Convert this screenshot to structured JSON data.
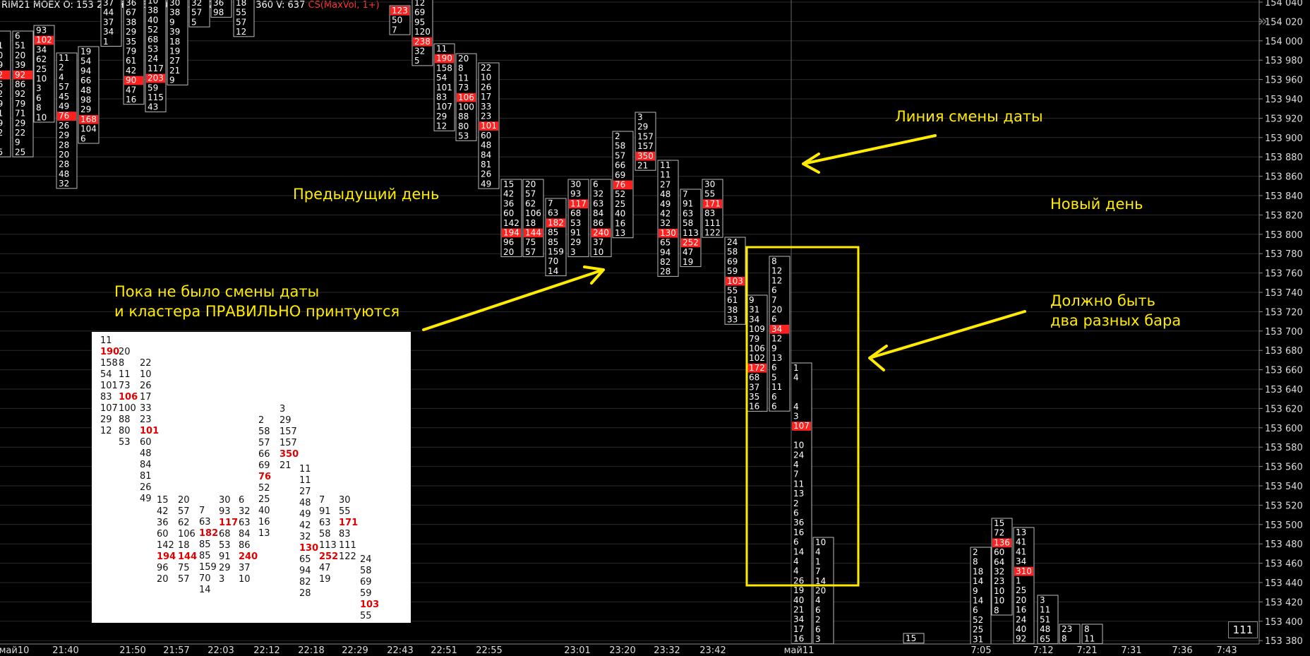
{
  "header": {
    "symbol": "RIM21",
    "exchange": "MOEX",
    "ohlcv": "O: 153 260  H: 153 360  L: 153 220  C: 153 360  V: 637",
    "indicator": "CS(MaxVol, 1+)"
  },
  "price_axis": [
    "154 040",
    "154 020",
    "154 000",
    "153 980",
    "153 960",
    "153 940",
    "153 920",
    "153 900",
    "153 880",
    "153 860",
    "153 840",
    "153 820",
    "153 800",
    "153 780",
    "153 760",
    "153 740",
    "153 720",
    "153 700",
    "153 680",
    "153 660",
    "153 640",
    "153 620",
    "153 600",
    "153 580",
    "153 560",
    "153 540",
    "153 520",
    "153 500",
    "153 480",
    "153 460",
    "153 440",
    "153 420",
    "153 400",
    "153 380"
  ],
  "time_axis": [
    "май10",
    "21:40",
    "21:50",
    "21:57",
    "22:03",
    "22:12",
    "22:18",
    "22:29",
    "22:43",
    "22:51",
    "22:55",
    "23:01",
    "23:20",
    "23:32",
    "23:42",
    "май11",
    "7:05",
    "7:12",
    "7:21",
    "7:31",
    "7:36",
    "7:43"
  ],
  "counter": "111",
  "notes": {
    "date_line": "Линия смены даты",
    "prev_day": "Предыдущий день",
    "new_day": "Новый день",
    "correct": "Пока не было смены даты\nи кластера ПРАВИЛЬНО принтуются",
    "two_bars": "Должно быть\nдва разных бара"
  },
  "colors": {
    "max_volume": "#ff2020",
    "note": "#ffeb00",
    "frame": "#ffeb00",
    "grid": "#2a2a2a"
  },
  "bars": [
    {
      "vals": [
        "5",
        "51",
        "20",
        "39",
        "92",
        "86",
        "92",
        "79",
        "71",
        "29",
        "22",
        "9",
        "25"
      ],
      "max": 4
    },
    {
      "vals": [
        "6",
        "51",
        "20",
        "39",
        "92",
        "86",
        "92",
        "79",
        "71",
        "29",
        "22",
        "9",
        "25"
      ],
      "max": 4
    },
    {
      "vals": [
        "93",
        "102",
        "34",
        "62",
        "25",
        "10",
        "3",
        "6",
        "8",
        "10"
      ],
      "max": 1
    },
    {
      "vals": [
        "11",
        "2",
        "4",
        "57",
        "45",
        "49",
        "76",
        "26",
        "29",
        "28",
        "20",
        "28",
        "48",
        "32"
      ],
      "max": 6
    },
    {
      "vals": [
        "19",
        "54",
        "94",
        "66",
        "48",
        "98",
        "29",
        "168",
        "104",
        "6"
      ],
      "max": 7
    },
    {
      "vals": [
        "37",
        "44",
        "37",
        "34",
        "1"
      ],
      "max": -1
    },
    {
      "vals": [
        "36",
        "67",
        "38",
        "29",
        "35",
        "79",
        "61",
        "42",
        "90",
        "47",
        "16"
      ],
      "max": 8
    },
    {
      "vals": [
        "10",
        "38",
        "40",
        "52",
        "68",
        "53",
        "24",
        "117",
        "203",
        "59",
        "115",
        "43"
      ],
      "max": 8
    },
    {
      "vals": [
        "30",
        "38",
        "9",
        "39",
        "18",
        "19",
        "27",
        "21",
        "9"
      ],
      "max": -1
    },
    {
      "vals": [
        "32",
        "57",
        "5"
      ],
      "max": -1
    },
    {
      "vals": [
        "36",
        "98"
      ],
      "max": -1
    },
    {
      "vals": [
        "18",
        "55",
        "57",
        "12"
      ],
      "max": -1
    },
    {
      "vals": [
        "123",
        "50",
        "7"
      ],
      "max": 0
    },
    {
      "vals": [
        "12",
        "69",
        "95",
        "120",
        "238",
        "32",
        "5"
      ],
      "max": 4
    },
    {
      "vals": [
        "11",
        "190",
        "158",
        "54",
        "101",
        "83",
        "107",
        "29",
        "12"
      ],
      "max": 1
    },
    {
      "vals": [
        "20",
        "8",
        "11",
        "73",
        "106",
        "100",
        "88",
        "80",
        "53"
      ],
      "max": 4
    },
    {
      "vals": [
        "22",
        "10",
        "26",
        "17",
        "33",
        "23",
        "101",
        "60",
        "48",
        "84",
        "81",
        "26",
        "49"
      ],
      "max": 6
    },
    {
      "vals": [
        "15",
        "42",
        "36",
        "60",
        "142",
        "194",
        "96",
        "20"
      ],
      "max": 5
    },
    {
      "vals": [
        "20",
        "57",
        "62",
        "106",
        "18",
        "144",
        "75",
        "57"
      ],
      "max": 5
    },
    {
      "vals": [
        "7",
        "63",
        "182",
        "85",
        "85",
        "159",
        "70",
        "14"
      ],
      "max": 2
    },
    {
      "vals": [
        "30",
        "93",
        "117",
        "68",
        "53",
        "91",
        "29",
        "3"
      ],
      "max": 2
    },
    {
      "vals": [
        "6",
        "32",
        "63",
        "84",
        "86",
        "240",
        "37",
        "10"
      ],
      "max": 5
    },
    {
      "vals": [
        "2",
        "58",
        "57",
        "66",
        "69",
        "76",
        "52",
        "25",
        "40",
        "16",
        "13"
      ],
      "max": 5
    },
    {
      "vals": [
        "3",
        "29",
        "157",
        "157",
        "350",
        "21"
      ],
      "max": 4
    },
    {
      "vals": [
        "11",
        "11",
        "27",
        "48",
        "49",
        "42",
        "32",
        "130",
        "65",
        "94",
        "82",
        "28"
      ],
      "max": 7
    },
    {
      "vals": [
        "7",
        "91",
        "63",
        "58",
        "113",
        "252",
        "47",
        "19"
      ],
      "max": 5
    },
    {
      "vals": [
        "30",
        "55",
        "171",
        "83",
        "111",
        "122"
      ],
      "max": 2
    },
    {
      "vals": [
        "24",
        "58",
        "69",
        "59",
        "103",
        "55",
        "61",
        "38",
        "33"
      ],
      "max": 4
    },
    {
      "vals": [
        "9",
        "31",
        "34",
        "109",
        "79",
        "106",
        "102",
        "172",
        "68",
        "37",
        "35",
        "16"
      ],
      "max": 7
    },
    {
      "vals": [
        "8",
        "12",
        "12",
        "6",
        "7",
        "20",
        "6",
        "34",
        "12",
        "9",
        "13",
        "6",
        "5",
        "11",
        "6",
        "6"
      ],
      "max": 7
    },
    {
      "vals": [
        "1",
        "4",
        "",
        "",
        "4",
        "3",
        "107",
        "",
        "10",
        "24",
        "4",
        "7",
        "11",
        "13",
        "2",
        "6",
        "36",
        "16",
        "6",
        "14",
        "4",
        "4",
        "26",
        "19",
        "40",
        "21",
        "34",
        "17",
        "16"
      ],
      "max": 6
    },
    {
      "vals": [
        "10",
        "4",
        "1",
        "7",
        "14",
        "20",
        "4",
        "6",
        "2",
        "6",
        "3"
      ],
      "max": -1
    },
    {
      "vals": [
        "15"
      ],
      "max": -1
    },
    {
      "vals": [
        "2",
        "8",
        "18",
        "14",
        "9",
        "14",
        "6",
        "52",
        "25",
        "31"
      ],
      "max": -1
    },
    {
      "vals": [
        "15",
        "72",
        "136",
        "60",
        "64",
        "32",
        "23",
        "10",
        "10",
        "8"
      ],
      "max": 2
    },
    {
      "vals": [
        "13",
        "41",
        "41",
        "34",
        "310",
        "1",
        "25",
        "20",
        "16",
        "24",
        "40",
        "92"
      ],
      "max": 4
    },
    {
      "vals": [
        "3",
        "11",
        "51",
        "48",
        "65"
      ],
      "max": -1
    },
    {
      "vals": [
        "23",
        "8"
      ],
      "max": -1
    },
    {
      "vals": [
        "8",
        "11"
      ],
      "max": -1
    }
  ],
  "inset": {
    "columns": [
      {
        "vals": [
          "11",
          "190",
          "158",
          "54",
          "101",
          "83",
          "107",
          "29",
          "12"
        ],
        "max": 1
      },
      {
        "vals": [
          "20",
          "8",
          "11",
          "73",
          "106",
          "100",
          "88",
          "80",
          "53"
        ],
        "max": 4
      },
      {
        "vals": [
          "22",
          "10",
          "26",
          "17",
          "33",
          "23",
          "101",
          "60",
          "48",
          "84",
          "81",
          "26",
          "49"
        ],
        "max": 6
      },
      {
        "vals": [
          "15",
          "42",
          "36",
          "60",
          "142",
          "194",
          "96",
          "20"
        ],
        "max": 5
      },
      {
        "vals": [
          "20",
          "57",
          "62",
          "106",
          "18",
          "144",
          "75",
          "57"
        ],
        "max": 5
      },
      {
        "vals": [
          "7",
          "63",
          "182",
          "85",
          "85",
          "159",
          "70",
          "14"
        ],
        "max": 2
      },
      {
        "vals": [
          "30",
          "93",
          "117",
          "68",
          "53",
          "91",
          "29",
          "3"
        ],
        "max": 2
      },
      {
        "vals": [
          "6",
          "32",
          "63",
          "84",
          "86",
          "240",
          "37",
          "10"
        ],
        "max": 5
      },
      {
        "vals": [
          "2",
          "58",
          "57",
          "66",
          "69",
          "76",
          "52",
          "25",
          "40",
          "16",
          "13"
        ],
        "max": 5
      },
      {
        "vals": [
          "3",
          "29",
          "157",
          "157",
          "350",
          "21"
        ],
        "max": 4
      },
      {
        "vals": [
          "11",
          "11",
          "27",
          "48",
          "49",
          "42",
          "32",
          "130",
          "65",
          "94",
          "82",
          "28"
        ],
        "max": 7
      },
      {
        "vals": [
          "7",
          "91",
          "63",
          "58",
          "113",
          "252",
          "47",
          "19"
        ],
        "max": 5
      },
      {
        "vals": [
          "30",
          "55",
          "171",
          "83",
          "111",
          "122"
        ],
        "max": 2
      },
      {
        "vals": [
          "24",
          "58",
          "69",
          "59",
          "103",
          "55"
        ],
        "max": 4
      }
    ]
  }
}
